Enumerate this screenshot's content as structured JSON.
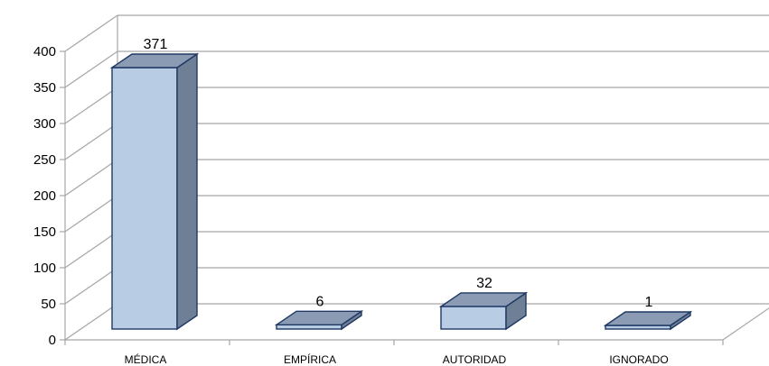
{
  "chart_data": {
    "type": "bar",
    "style": "3d-column",
    "categories": [
      "MÉDICA",
      "EMPÍRICA",
      "AUTORIDAD",
      "IGNORADO"
    ],
    "values": [
      371,
      6,
      32,
      1
    ],
    "data_labels": [
      "371",
      "6",
      "32",
      "1"
    ],
    "y_ticks": [
      "0",
      "50",
      "100",
      "150",
      "200",
      "250",
      "300",
      "350",
      "400"
    ],
    "ylim": [
      0,
      400
    ],
    "title": "",
    "xlabel": "",
    "ylabel": "",
    "grid": true,
    "legend": "none",
    "colors": {
      "bar_front": "#b8cce4",
      "bar_side": "#6f7f95",
      "bar_top": "#8a9bb3",
      "bar_edge": "#1f3864",
      "grid": "#a6a6a6"
    }
  }
}
